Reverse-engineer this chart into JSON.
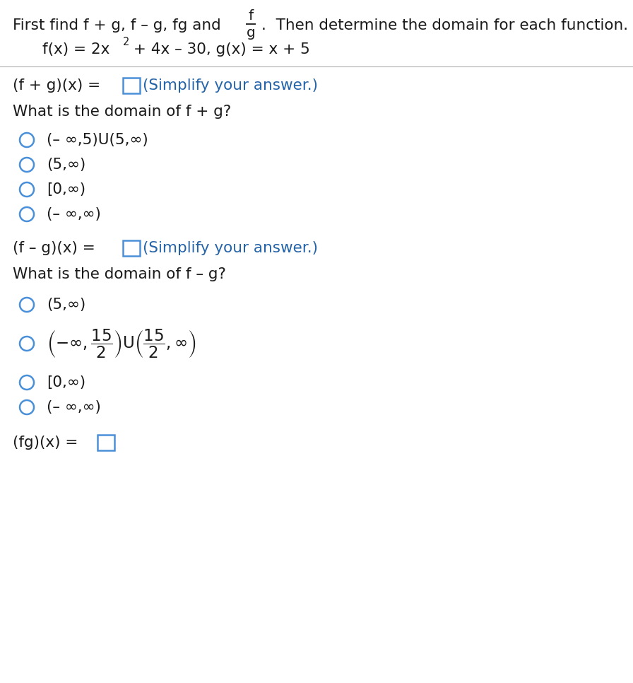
{
  "bg_color": "#ffffff",
  "text_color_black": "#1a1a1a",
  "text_color_blue": "#2563a8",
  "circle_color": "#4a90d9",
  "figsize": [
    8.96,
    9.66
  ],
  "dpi": 100,
  "section1_options": [
    "(– ∞,5)U(5,∞)",
    "(5,∞)",
    "[0,∞)",
    "(– ∞,∞)"
  ]
}
